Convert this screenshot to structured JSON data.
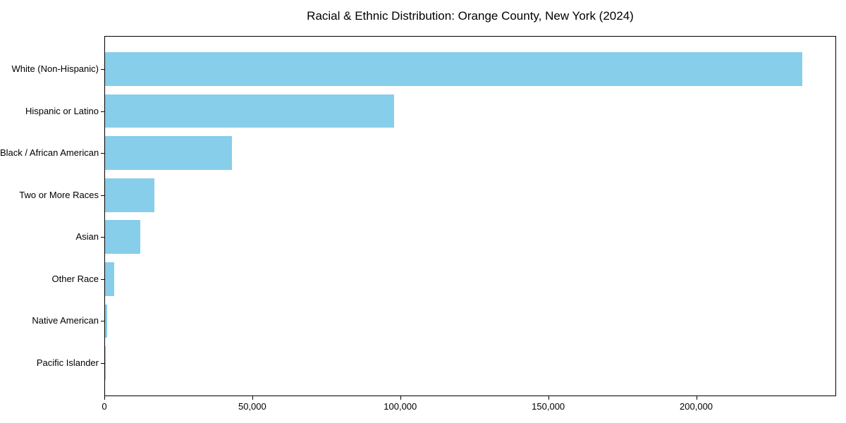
{
  "chart_data": {
    "type": "bar",
    "orientation": "horizontal",
    "title": "Racial & Ethnic Distribution: Orange County, New York (2024)",
    "categories": [
      "White (Non-Hispanic)",
      "Hispanic or Latino",
      "Black / African American",
      "Two or More Races",
      "Asian",
      "Other Race",
      "Native American",
      "Pacific Islander"
    ],
    "values": [
      235500,
      97600,
      42900,
      16600,
      11900,
      3100,
      600,
      100
    ],
    "xlabel": "",
    "ylabel": "",
    "xlim": [
      0,
      247275
    ],
    "xtick_values": [
      0,
      50000,
      100000,
      150000,
      200000
    ],
    "xtick_labels": [
      "0",
      "50,000",
      "100,000",
      "150,000",
      "200,000"
    ],
    "grid": false,
    "legend": null,
    "colors": {
      "bar": "#87CEEB",
      "axis": "#000000",
      "text": "#000000",
      "background": "#FFFFFF"
    }
  }
}
